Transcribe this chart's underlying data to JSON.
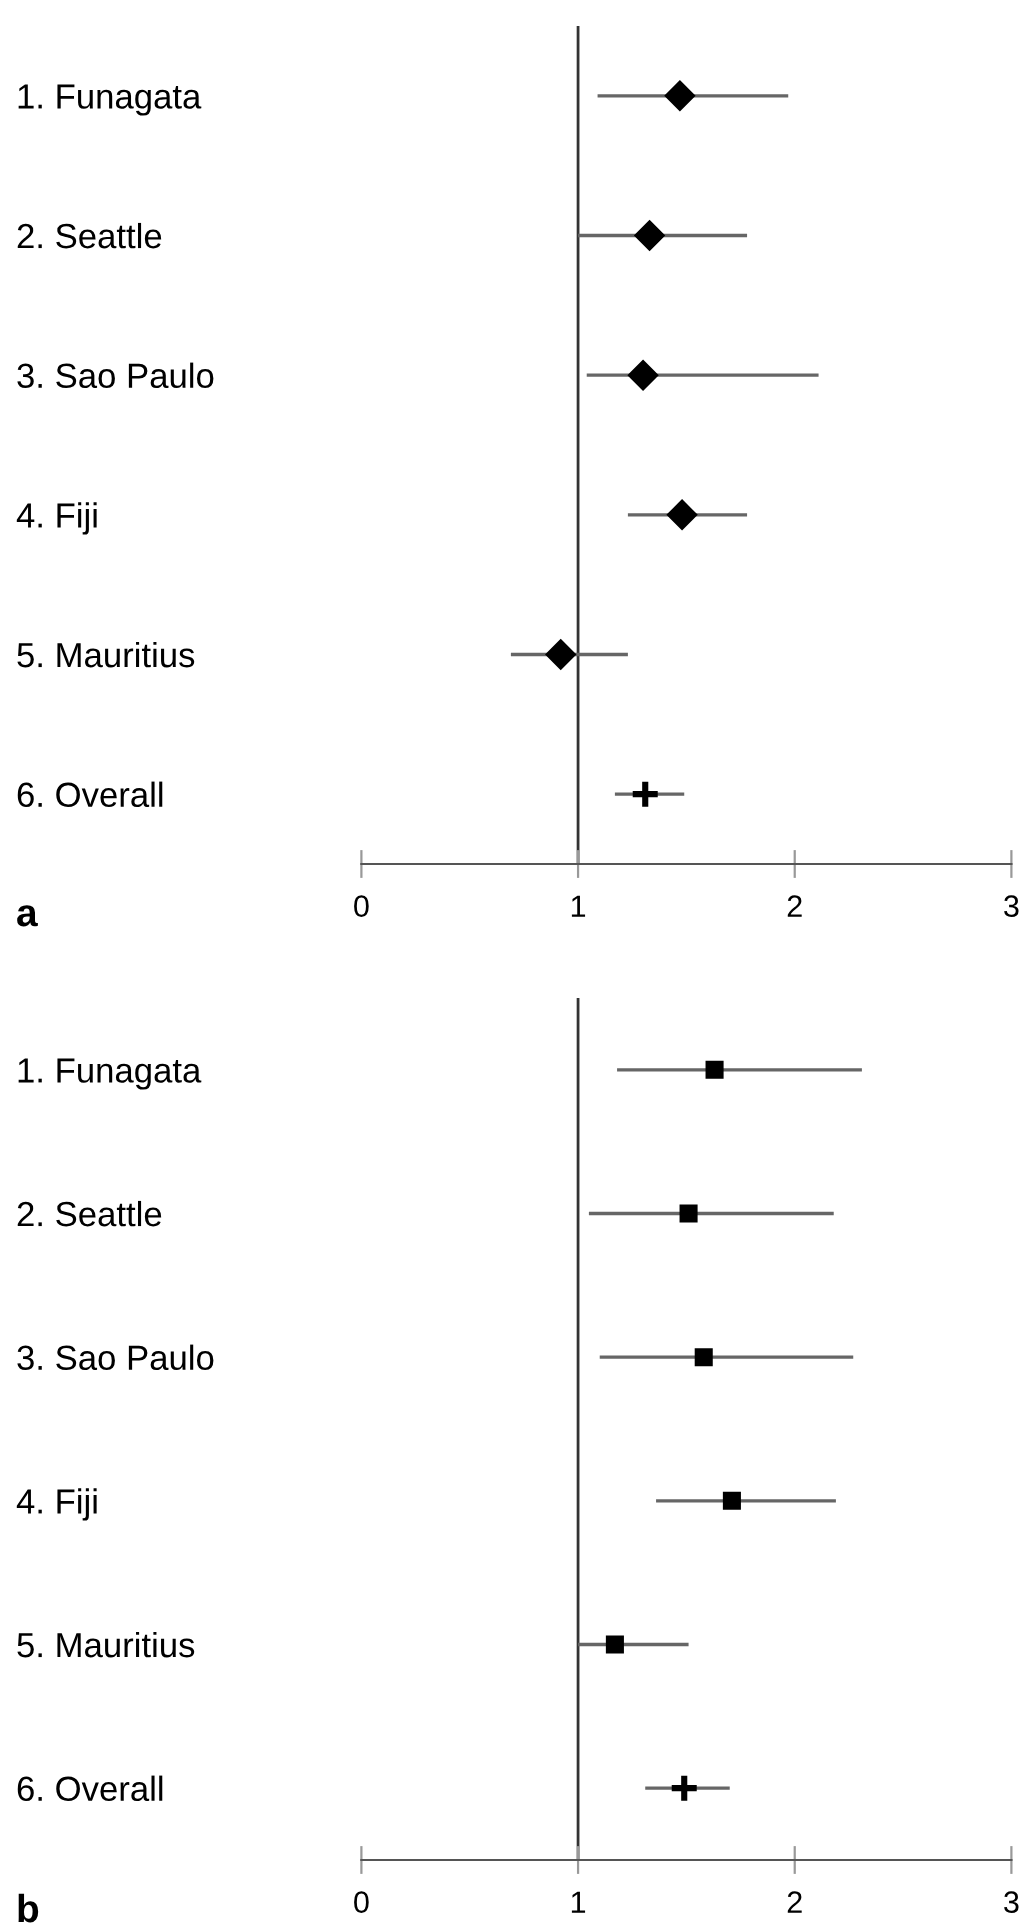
{
  "chart_data": [
    {
      "type": "scatter",
      "orientation": "horizontal",
      "categories": [
        "1. Funagata",
        "2. Seattle",
        "3. Sao Paulo",
        "4. Fiji",
        "5. Mauritius",
        "6. Overall"
      ],
      "series": [
        {
          "color": "#000000",
          "marker": "diamond",
          "values": [
            1.47,
            1.33,
            1.3,
            1.48,
            0.92,
            null
          ],
          "errors": [
            [
              1.09,
              1.97
            ],
            [
              1.0,
              1.78
            ],
            [
              1.04,
              2.11
            ],
            [
              1.23,
              1.78
            ],
            [
              0.69,
              1.23
            ],
            null
          ]
        },
        {
          "color": "#000000",
          "marker": "cross",
          "values": [
            null,
            null,
            null,
            null,
            null,
            1.31
          ],
          "errors": [
            null,
            null,
            null,
            null,
            null,
            [
              1.17,
              1.49
            ]
          ]
        }
      ],
      "xlim": [
        0,
        3
      ],
      "xticks": [
        0,
        1,
        2,
        3
      ],
      "ref_lines": [
        {
          "axis": "x",
          "value": 1,
          "color": "#333333"
        }
      ],
      "grid": false,
      "annotations": [
        "a"
      ]
    },
    {
      "type": "scatter",
      "orientation": "horizontal",
      "categories": [
        "1. Funagata",
        "2. Seattle",
        "3. Sao Paulo",
        "4. Fiji",
        "5. Mauritius",
        "6. Overall"
      ],
      "series": [
        {
          "color": "#000000",
          "marker": "square",
          "values": [
            1.63,
            1.51,
            1.58,
            1.71,
            1.17,
            null
          ],
          "errors": [
            [
              1.18,
              2.31
            ],
            [
              1.05,
              2.18
            ],
            [
              1.1,
              2.27
            ],
            [
              1.36,
              2.19
            ],
            [
              1.0,
              1.51
            ],
            null
          ]
        },
        {
          "color": "#000000",
          "marker": "cross",
          "values": [
            null,
            null,
            null,
            null,
            null,
            1.49
          ],
          "errors": [
            null,
            null,
            null,
            null,
            null,
            [
              1.31,
              1.7
            ]
          ]
        }
      ],
      "xlim": [
        0,
        3
      ],
      "xticks": [
        0,
        1,
        2,
        3
      ],
      "ref_lines": [
        {
          "axis": "x",
          "value": 1,
          "color": "#333333"
        }
      ],
      "grid": false,
      "annotations": [
        "b"
      ]
    }
  ]
}
